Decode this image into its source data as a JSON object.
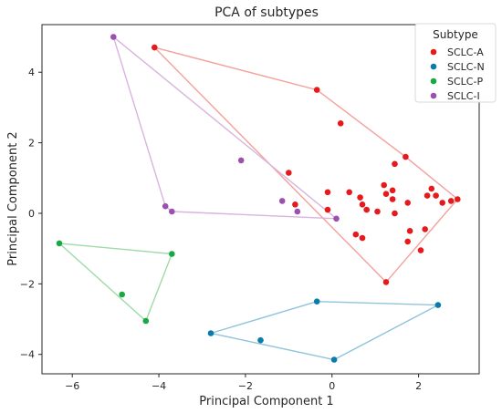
{
  "chart_data": {
    "type": "scatter",
    "title": "PCA of subtypes",
    "xlabel": "Principal Component 1",
    "ylabel": "Principal Component 2",
    "xlim": [
      -6.7,
      3.4
    ],
    "ylim": [
      -4.55,
      5.35
    ],
    "xticks": [
      -6,
      -4,
      -2,
      0,
      2
    ],
    "yticks": [
      -4,
      -2,
      0,
      2,
      4
    ],
    "grid": false,
    "legend": {
      "title": "Subtype",
      "position": "top-right"
    },
    "series": [
      {
        "name": "SCLC-A",
        "color": "#e41a1c",
        "hull_color": "#f4a09a",
        "hull": [
          [
            -4.1,
            4.7
          ],
          [
            -0.35,
            3.5
          ],
          [
            1.7,
            1.6
          ],
          [
            2.9,
            0.4
          ],
          [
            1.25,
            -1.95
          ]
        ],
        "points": [
          [
            -4.1,
            4.7
          ],
          [
            -0.35,
            3.5
          ],
          [
            0.2,
            2.55
          ],
          [
            -1.0,
            1.15
          ],
          [
            -0.85,
            0.25
          ],
          [
            -0.1,
            0.6
          ],
          [
            -0.1,
            0.1
          ],
          [
            0.4,
            0.6
          ],
          [
            0.65,
            0.45
          ],
          [
            0.7,
            0.25
          ],
          [
            0.8,
            0.1
          ],
          [
            0.55,
            -0.6
          ],
          [
            0.7,
            -0.7
          ],
          [
            1.05,
            0.05
          ],
          [
            1.2,
            0.8
          ],
          [
            1.25,
            0.55
          ],
          [
            1.4,
            0.65
          ],
          [
            1.4,
            0.4
          ],
          [
            1.45,
            1.4
          ],
          [
            1.45,
            0.0
          ],
          [
            1.7,
            1.6
          ],
          [
            1.75,
            0.3
          ],
          [
            1.8,
            -0.5
          ],
          [
            1.75,
            -0.8
          ],
          [
            2.15,
            -0.45
          ],
          [
            2.05,
            -1.05
          ],
          [
            2.2,
            0.5
          ],
          [
            2.3,
            0.7
          ],
          [
            2.4,
            0.5
          ],
          [
            2.55,
            0.3
          ],
          [
            2.75,
            0.35
          ],
          [
            2.9,
            0.4
          ],
          [
            1.25,
            -1.95
          ]
        ]
      },
      {
        "name": "SCLC-N",
        "color": "#0a7cab",
        "hull_color": "#8ec3db",
        "hull": [
          [
            -2.8,
            -3.4
          ],
          [
            -0.35,
            -2.5
          ],
          [
            2.45,
            -2.6
          ],
          [
            0.05,
            -4.15
          ]
        ],
        "points": [
          [
            -2.8,
            -3.4
          ],
          [
            -0.35,
            -2.5
          ],
          [
            2.45,
            -2.6
          ],
          [
            0.05,
            -4.15
          ],
          [
            -1.65,
            -3.6
          ]
        ]
      },
      {
        "name": "SCLC-P",
        "color": "#1aa844",
        "hull_color": "#9fdaa8",
        "hull": [
          [
            -6.3,
            -0.85
          ],
          [
            -3.7,
            -1.15
          ],
          [
            -4.3,
            -3.05
          ]
        ],
        "points": [
          [
            -6.3,
            -0.85
          ],
          [
            -3.7,
            -1.15
          ],
          [
            -4.3,
            -3.05
          ],
          [
            -4.85,
            -2.3
          ]
        ]
      },
      {
        "name": "SCLC-I",
        "color": "#9b4fb0",
        "hull_color": "#d8b4de",
        "hull": [
          [
            -5.05,
            5.0
          ],
          [
            0.1,
            -0.15
          ],
          [
            -3.7,
            0.05
          ],
          [
            -3.85,
            0.2
          ]
        ],
        "points": [
          [
            -5.05,
            5.0
          ],
          [
            -2.1,
            1.5
          ],
          [
            -1.15,
            0.35
          ],
          [
            -0.8,
            0.05
          ],
          [
            -3.85,
            0.2
          ],
          [
            -3.7,
            0.05
          ],
          [
            0.1,
            -0.15
          ]
        ]
      }
    ]
  }
}
